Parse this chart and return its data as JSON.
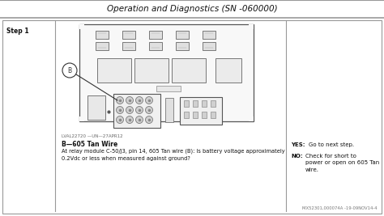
{
  "bg_color": "#e8e8e8",
  "page_bg": "#ffffff",
  "header_text": "Operation and Diagnostics (SN -060000)",
  "header_font_size": 7.5,
  "step_label": "Step 1",
  "ref_code": "LVAL22720 —UN—27APR12",
  "bold_label": "B—605 Tan Wire",
  "body_text": "At relay module C-50/J3, pin 14, 605 Tan wire (B): Is battery voltage approximately\n0.2Vdc or less when measured against ground?",
  "yes_bold": "YES:",
  "yes_text": " Go to next step.",
  "no_bold": "NO:",
  "no_text": "Check for short to\npower or open on 605 Tan\nwire.",
  "footer_text": "MX52301,000074A -19-09NOV14-4",
  "border_color": "#999999",
  "text_color": "#111111",
  "light_gray": "#f0f0f0",
  "mid_gray": "#d8d8d8",
  "dark_gray": "#888888"
}
